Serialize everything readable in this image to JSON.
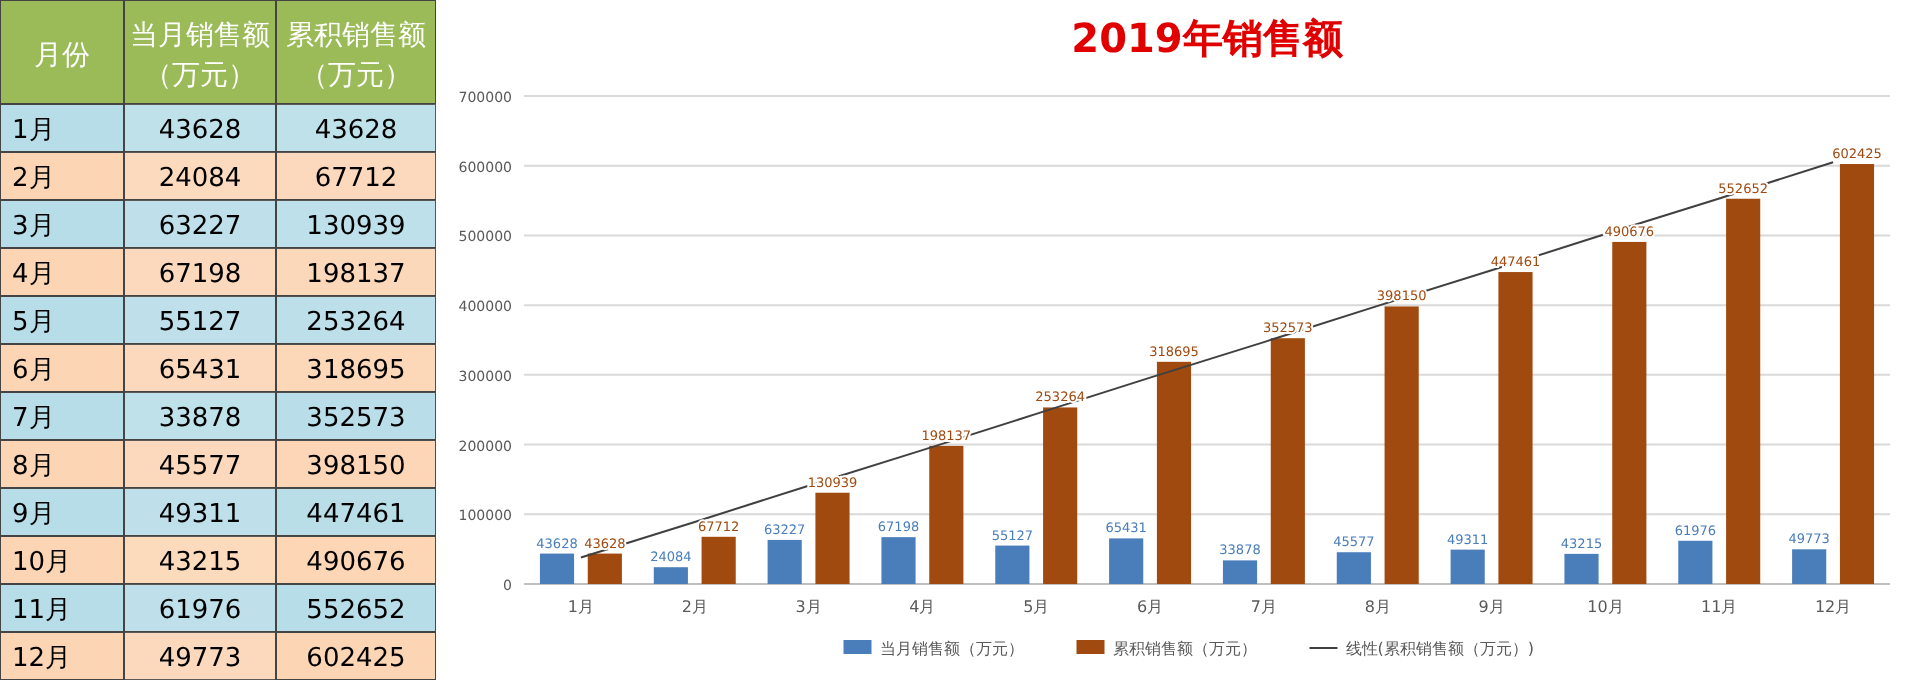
{
  "chart_data": [
    {
      "type": "heatmap",
      "ylabel": "月份",
      "categories": [
        "当月销售额（万元）",
        "累积销售额（万元）"
      ],
      "y_categories": [
        "1月",
        "2月",
        "3月",
        "4月",
        "5月",
        "6月",
        "7月",
        "8月",
        "9月",
        "10月",
        "11月",
        "12月"
      ],
      "cells": [
        [
          43628,
          43628
        ],
        [
          24084,
          67712
        ],
        [
          63227,
          130939
        ],
        [
          67198,
          198137
        ],
        [
          55127,
          253264
        ],
        [
          65431,
          318695
        ],
        [
          33878,
          352573
        ],
        [
          45577,
          398150
        ],
        [
          49311,
          447461
        ],
        [
          43215,
          490676
        ],
        [
          61976,
          552652
        ],
        [
          49773,
          602425
        ]
      ],
      "cell_labels": [
        [
          "43628",
          "43628"
        ],
        [
          "24084",
          "67712"
        ],
        [
          "63227",
          "130939"
        ],
        [
          "67198",
          "198137"
        ],
        [
          "55127",
          "253264"
        ],
        [
          "65431",
          "318695"
        ],
        [
          "33878",
          "352573"
        ],
        [
          "45577",
          "398150"
        ],
        [
          "49311",
          "447461"
        ],
        [
          "43215",
          "490676"
        ],
        [
          "61976",
          "552652"
        ],
        [
          "49773",
          "602425"
        ]
      ]
    },
    {
      "type": "bar",
      "title": "2019年销售额",
      "categories": [
        "1月",
        "2月",
        "3月",
        "4月",
        "5月",
        "6月",
        "7月",
        "8月",
        "9月",
        "10月",
        "11月",
        "12月"
      ],
      "series": [
        {
          "name": "当月销售额（万元）",
          "color": "#4a7ebb",
          "data_labels": true,
          "values": [
            43628,
            24084,
            63227,
            67198,
            55127,
            65431,
            33878,
            45577,
            49311,
            43215,
            61976,
            49773
          ]
        },
        {
          "name": "累积销售额（万元）",
          "color": "#a04a10",
          "data_labels": true,
          "values": [
            43628,
            67712,
            130939,
            198137,
            253264,
            318695,
            352573,
            398150,
            447461,
            490676,
            552652,
            602425
          ]
        },
        {
          "name": "线性(累积销售额（万元）)",
          "type": "line",
          "color": "#404040",
          "values": [
            38000,
            89000,
            141000,
            192000,
            244000,
            296000,
            347000,
            399000,
            450000,
            502000,
            553000,
            605000
          ]
        }
      ],
      "ylim": [
        0,
        700000
      ],
      "yticks": [
        0,
        100000,
        200000,
        300000,
        400000,
        500000,
        600000,
        700000
      ],
      "grid": "y",
      "legend": "bottom"
    }
  ]
}
